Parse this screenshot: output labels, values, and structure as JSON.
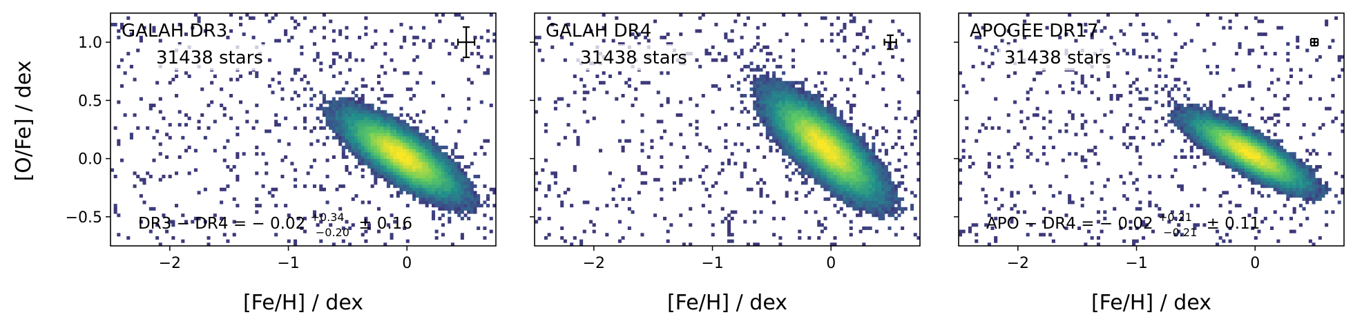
{
  "figure": {
    "shared_ylabel": "[O/Fe] / dex",
    "shared_xlabel": "[Fe/H] / dex"
  },
  "chart_data": [
    {
      "type": "heatmap",
      "title": "GALAH DR3",
      "count_label": "31438 stars",
      "xlabel": "[Fe/H] / dex",
      "ylabel": "[O/Fe] / dex",
      "xlim": [
        -2.5,
        0.75
      ],
      "ylim": [
        -0.75,
        1.25
      ],
      "xticks": [
        -2,
        -1,
        0
      ],
      "xtick_labels": [
        "−2",
        "−1",
        "0"
      ],
      "yticks": [
        -0.5,
        0.0,
        0.5,
        1.0
      ],
      "ytick_labels": [
        "−0.5",
        "0.0",
        "0.5",
        "1.0"
      ],
      "errorbar": {
        "x": 0.5,
        "y": 1.0,
        "xerr": 0.07,
        "yerr": 0.13
      },
      "stat": {
        "prefix": "DR3 − DR4 = − 0.02",
        "sup": "+0.34",
        "sub": "−0.20",
        "suffix": "± 0.16"
      },
      "density": {
        "center": [
          -0.05,
          0.03
        ],
        "axis_major": [
          -0.82,
          0.57
        ],
        "sigma_major": 0.33,
        "sigma_minor": 0.11,
        "bins": 120
      },
      "colormap": [
        "#440154",
        "#3b528b",
        "#21918c",
        "#5ec962",
        "#fde725"
      ]
    },
    {
      "type": "heatmap",
      "title": "GALAH DR4",
      "count_label": "31438 stars",
      "xlabel": "[Fe/H] / dex",
      "ylabel": "",
      "xlim": [
        -2.5,
        0.75
      ],
      "ylim": [
        -0.75,
        1.25
      ],
      "xticks": [
        -2,
        -1,
        0
      ],
      "xtick_labels": [
        "−2",
        "−1",
        "0"
      ],
      "yticks": [
        -0.5,
        0.0,
        0.5,
        1.0
      ],
      "ytick_labels": [],
      "errorbar": {
        "x": 0.5,
        "y": 1.0,
        "xerr": 0.05,
        "yerr": 0.06
      },
      "stat": null,
      "density": {
        "center": [
          -0.05,
          0.1
        ],
        "axis_major": [
          -0.72,
          0.69
        ],
        "sigma_major": 0.35,
        "sigma_minor": 0.12,
        "bins": 120
      },
      "colormap": [
        "#440154",
        "#3b528b",
        "#21918c",
        "#5ec962",
        "#fde725"
      ]
    },
    {
      "type": "heatmap",
      "title": "APOGEE DR17",
      "count_label": "31438 stars",
      "xlabel": "[Fe/H] / dex",
      "ylabel": "",
      "xlim": [
        -2.5,
        0.75
      ],
      "ylim": [
        -0.75,
        1.25
      ],
      "xticks": [
        -2,
        -1,
        0
      ],
      "xtick_labels": [
        "−2",
        "−1",
        "0"
      ],
      "yticks": [
        -0.5,
        0.0,
        0.5,
        1.0
      ],
      "ytick_labels": [],
      "errorbar": {
        "x": 0.5,
        "y": 1.0,
        "xerr": 0.03,
        "yerr": 0.03
      },
      "stat": {
        "prefix": "APO − DR4 = − 0.02",
        "sup": "+0.21",
        "sub": "−0.21",
        "suffix": "± 0.11"
      },
      "density": {
        "center": [
          -0.05,
          0.05
        ],
        "axis_major": [
          -0.86,
          0.5
        ],
        "sigma_major": 0.32,
        "sigma_minor": 0.085,
        "bins": 120
      },
      "colormap": [
        "#440154",
        "#3b528b",
        "#21918c",
        "#5ec962",
        "#fde725"
      ]
    }
  ]
}
